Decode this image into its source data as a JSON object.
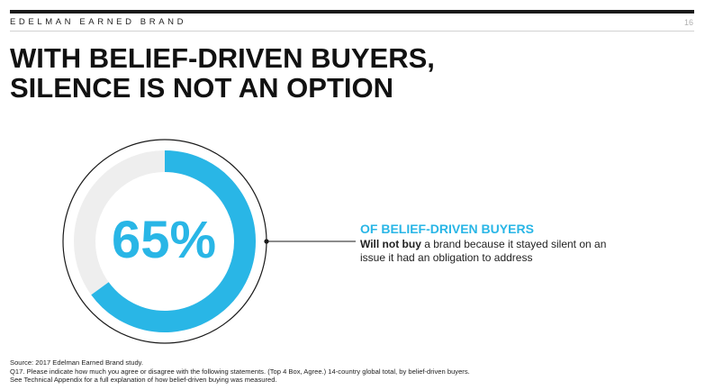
{
  "header": {
    "label": "EDELMAN EARNED BRAND",
    "page_number": "16"
  },
  "title": {
    "line1": "WITH BELIEF-DRIVEN BUYERS,",
    "line2": "SILENCE IS NOT AN OPTION"
  },
  "stat": {
    "value_label": "65%",
    "value": 65,
    "heading": "OF BELIEF-DRIVEN BUYERS",
    "text_bold": "Will not buy",
    "text_rest": " a brand because it stayed silent on an issue it had an obligation to address"
  },
  "footnotes": [
    "Source: 2017 Edelman Earned Brand study.",
    "Q17. Please indicate how much you agree or disagree with the following statements. (Top 4 Box, Agree.) 14-country global total, by belief-driven buyers.",
    "See Technical Appendix for a full explanation of how belief-driven buying was measured."
  ],
  "colors": {
    "accent": "#29b6e6",
    "track": "#eeeeee",
    "dark": "#1a1a1a"
  }
}
